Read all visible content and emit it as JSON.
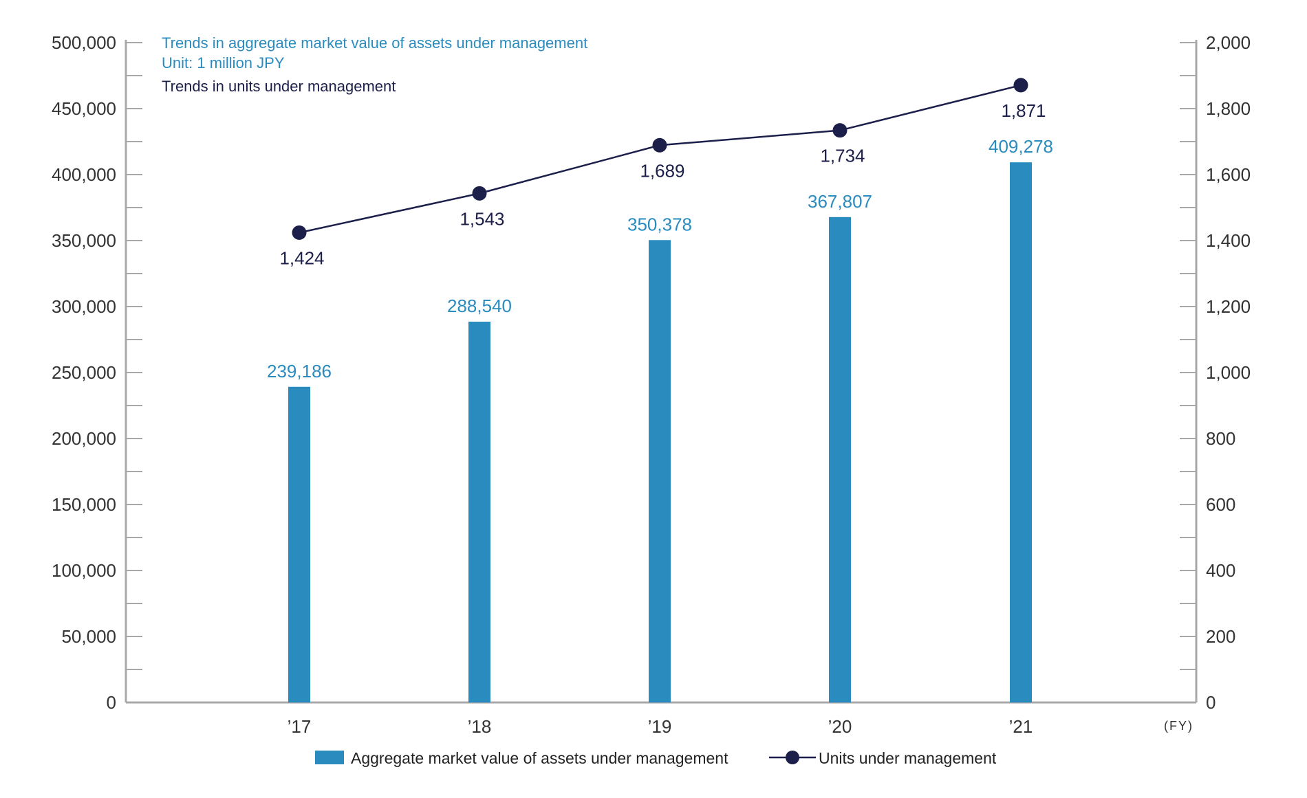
{
  "chart_data": {
    "type": "bar",
    "titles": {
      "bar_title": "Trends in aggregate market value of assets under management",
      "bar_unit": "Unit: 1 million JPY",
      "line_title": "Trends in units under management"
    },
    "x_unit": "(FY)",
    "categories": [
      "’17",
      "’18",
      "’19",
      "’20",
      "’21"
    ],
    "series": [
      {
        "name": "Aggregate market value of assets under management",
        "type": "bar",
        "axis": "left",
        "color": "#2a8bbf",
        "values": [
          239186,
          288540,
          350378,
          367807,
          409278
        ],
        "labels": [
          "239,186",
          "288,540",
          "350,378",
          "367,807",
          "409,278"
        ]
      },
      {
        "name": "Units under management",
        "type": "line",
        "axis": "right",
        "color": "#1c1f4a",
        "values": [
          1424,
          1543,
          1689,
          1734,
          1871
        ],
        "labels": [
          "1,424",
          "1,543",
          "1,689",
          "1,734",
          "1,871"
        ]
      }
    ],
    "y_left": {
      "ylim": [
        0,
        500000
      ],
      "ticks": [
        0,
        50000,
        100000,
        150000,
        200000,
        250000,
        300000,
        350000,
        400000,
        450000,
        500000
      ],
      "tick_labels": [
        "0",
        "50,000",
        "100,000",
        "150,000",
        "200,000",
        "250,000",
        "300,000",
        "350,000",
        "400,000",
        "450,000",
        "500,000"
      ]
    },
    "y_right": {
      "ylim": [
        0,
        2000
      ],
      "ticks": [
        0,
        200,
        400,
        600,
        800,
        1000,
        1200,
        1400,
        1600,
        1800,
        2000
      ],
      "tick_labels": [
        "0",
        "200",
        "400",
        "600",
        "800",
        "1,000",
        "1,200",
        "1,400",
        "1,600",
        "1,800",
        "2,000"
      ]
    },
    "grid": false,
    "legend": "bottom"
  }
}
